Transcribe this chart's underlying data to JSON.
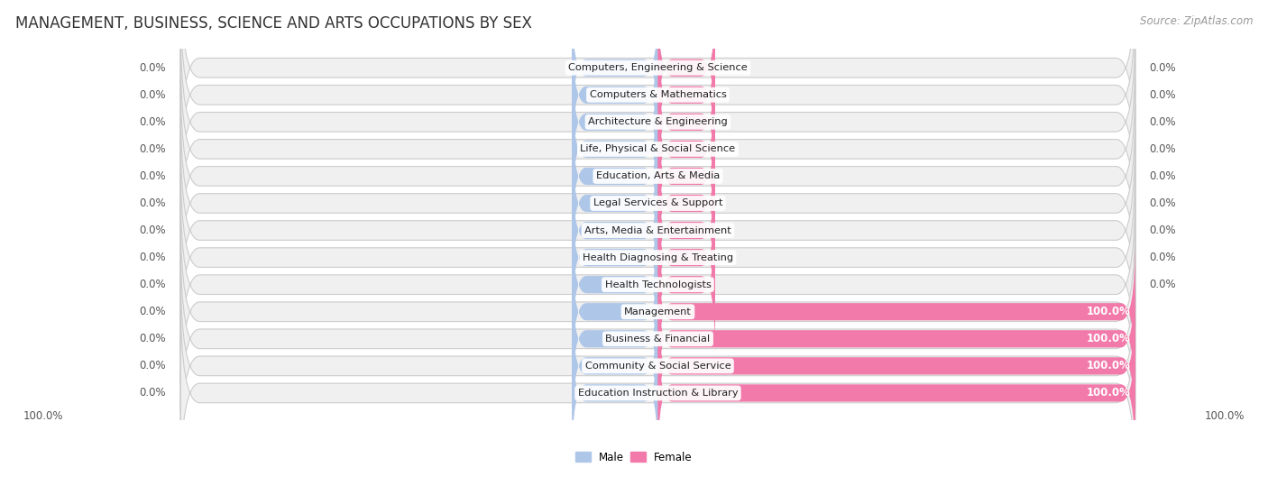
{
  "title": "MANAGEMENT, BUSINESS, SCIENCE AND ARTS OCCUPATIONS BY SEX",
  "source": "Source: ZipAtlas.com",
  "categories": [
    "Computers, Engineering & Science",
    "Computers & Mathematics",
    "Architecture & Engineering",
    "Life, Physical & Social Science",
    "Education, Arts & Media",
    "Legal Services & Support",
    "Arts, Media & Entertainment",
    "Health Diagnosing & Treating",
    "Health Technologists",
    "Management",
    "Business & Financial",
    "Community & Social Service",
    "Education Instruction & Library"
  ],
  "male_values": [
    0.0,
    0.0,
    0.0,
    0.0,
    0.0,
    0.0,
    0.0,
    0.0,
    0.0,
    0.0,
    0.0,
    0.0,
    0.0
  ],
  "female_values": [
    0.0,
    0.0,
    0.0,
    0.0,
    0.0,
    0.0,
    0.0,
    0.0,
    0.0,
    100.0,
    100.0,
    100.0,
    100.0
  ],
  "male_color": "#aec6e8",
  "female_color": "#f27aaa",
  "male_label": "Male",
  "female_label": "Female",
  "row_bg_color": "#ebebeb",
  "row_bg_inner_color": "#f5f5f5",
  "label_fontsize": 8.5,
  "cat_fontsize": 8.2,
  "title_fontsize": 12,
  "source_fontsize": 8.5
}
